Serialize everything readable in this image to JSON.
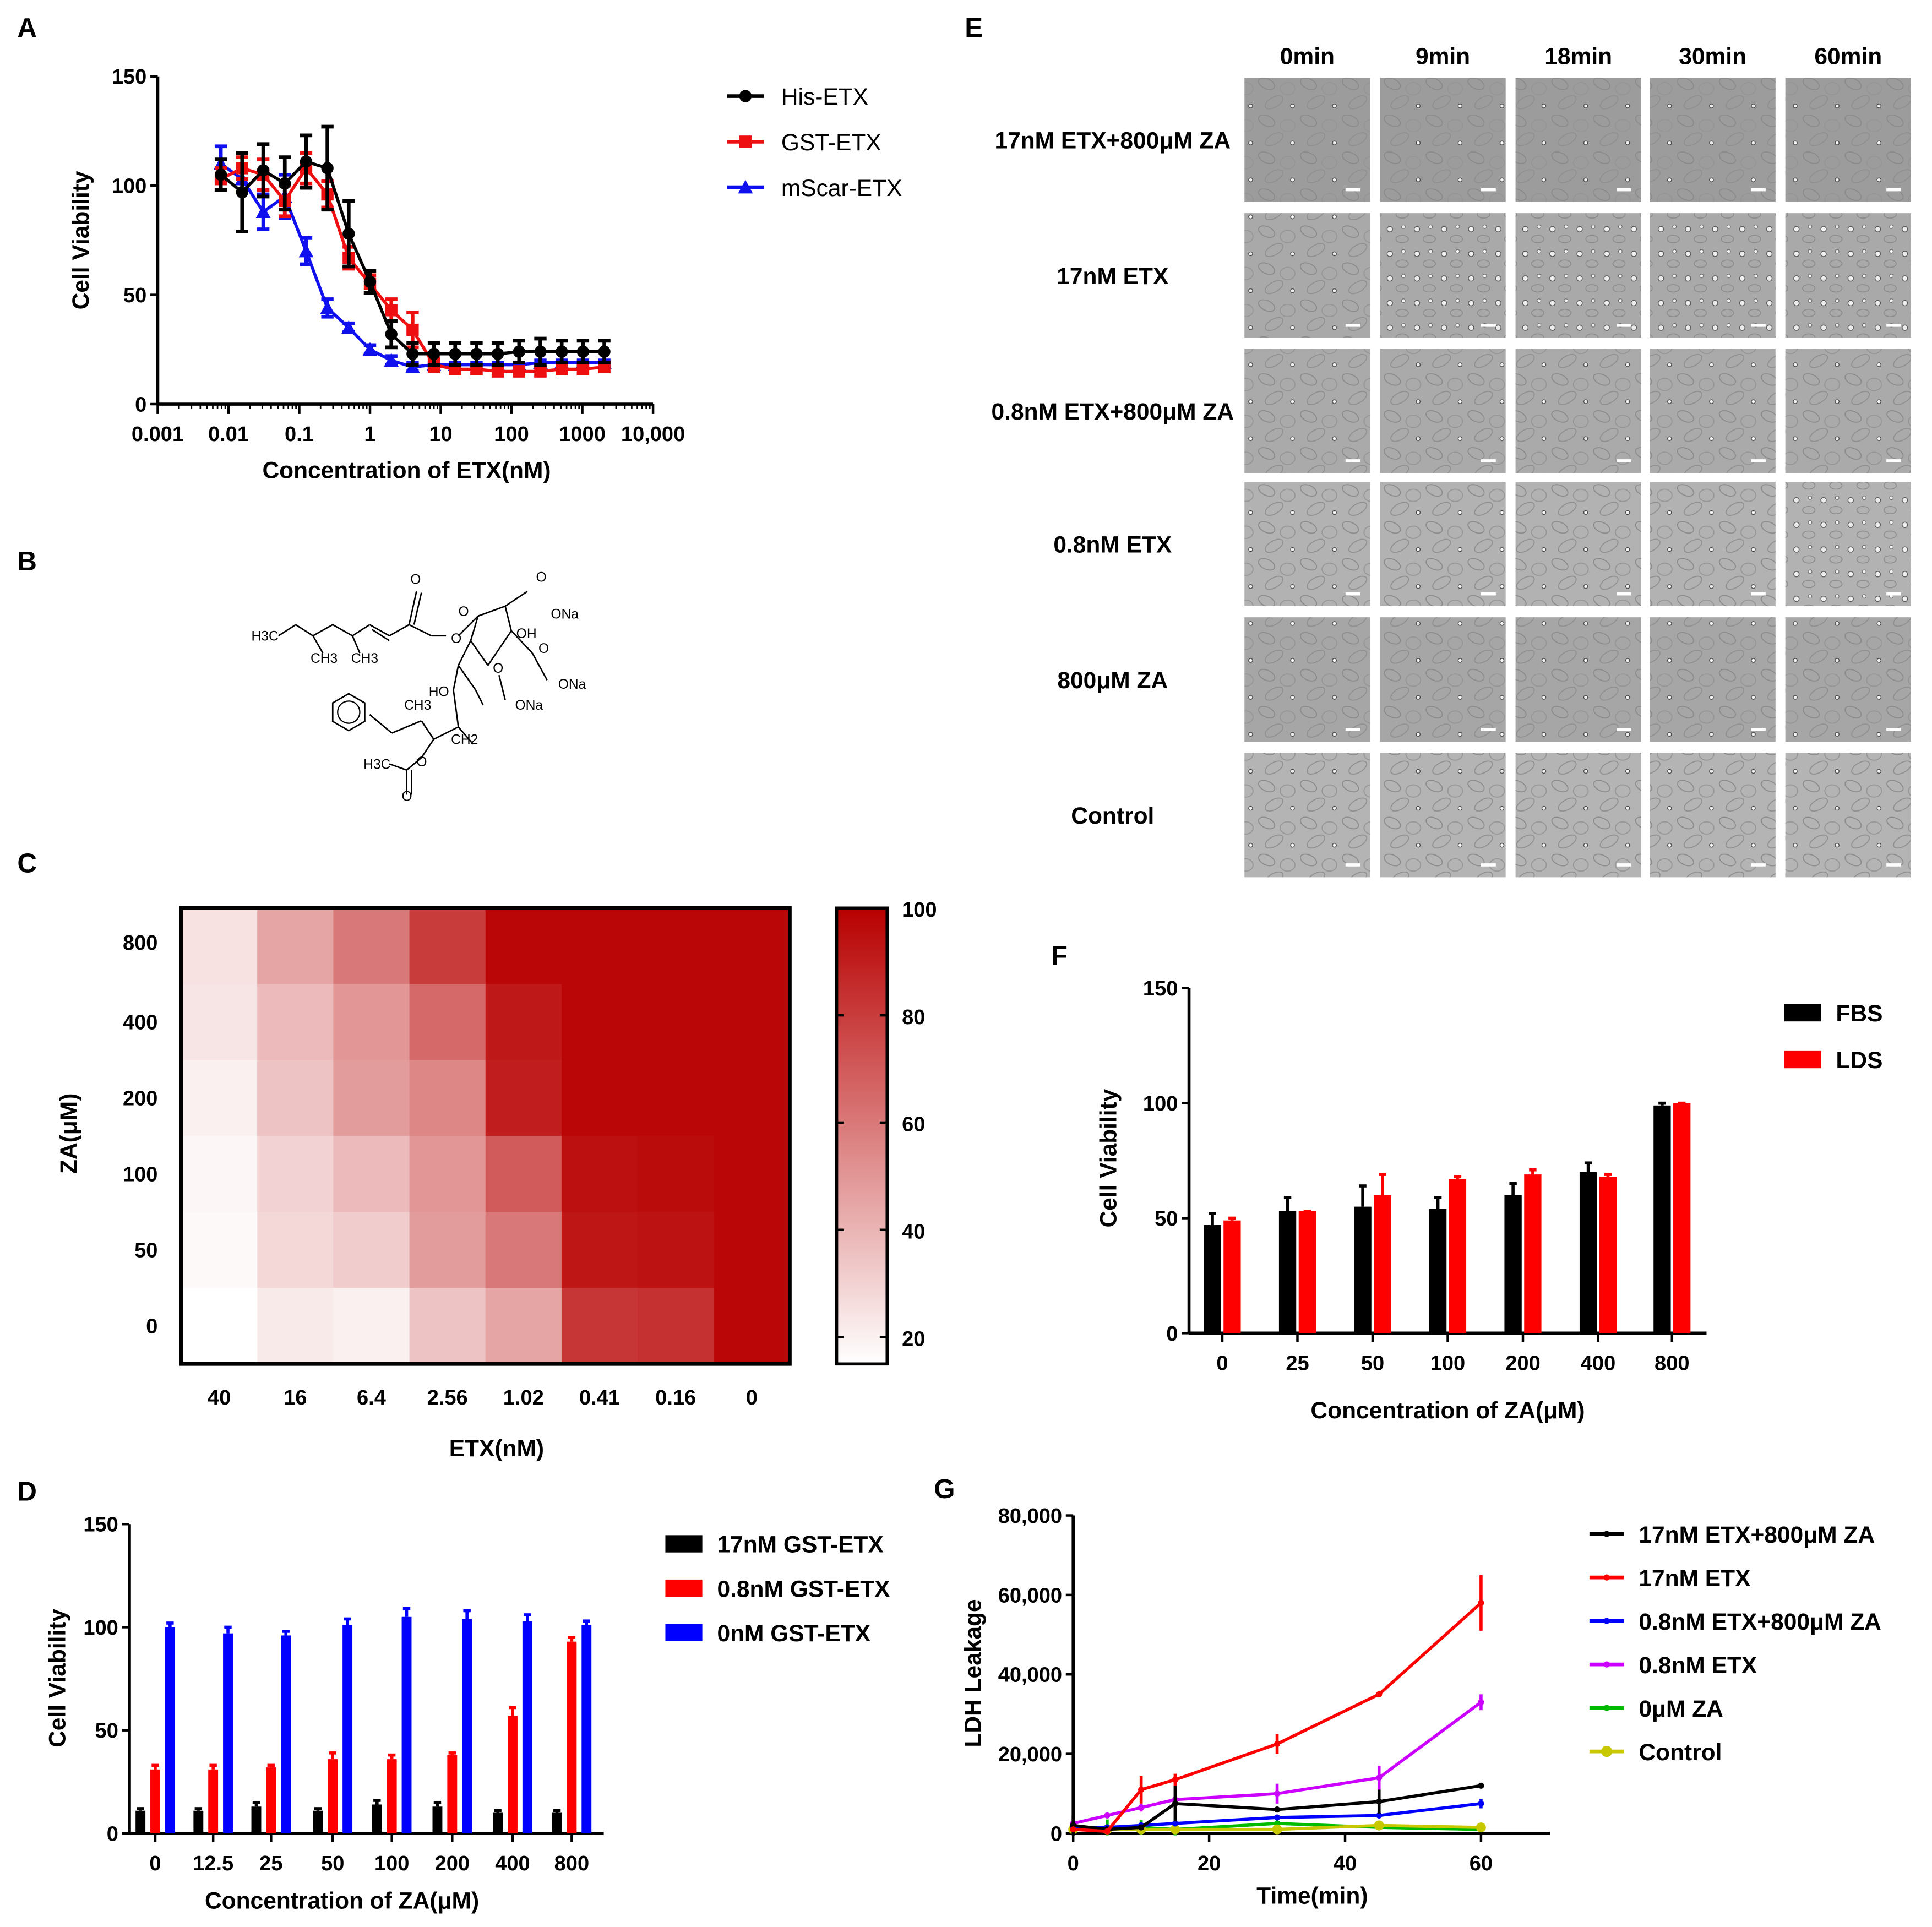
{
  "panel_labels": {
    "A": "A",
    "B": "B",
    "C": "C",
    "D": "D",
    "E": "E",
    "F": "F",
    "G": "G"
  },
  "panel_b": {
    "labels": [
      "H3C",
      "CH3",
      "CH3",
      "O",
      "O",
      "O",
      "ONa",
      "OH",
      "O",
      "O",
      "ONa",
      "HO",
      "CH3",
      "O",
      "ONa",
      "CH2",
      "H3C",
      "O",
      "O"
    ]
  },
  "panel_e": {
    "columns": [
      "0min",
      "9min",
      "18min",
      "30min",
      "60min"
    ],
    "rows": [
      "17nM ETX+800μM ZA",
      "17nM ETX",
      "0.8nM ETX+800μM ZA",
      "0.8nM ETX",
      "800μM ZA",
      "Control"
    ]
  },
  "chart_data": [
    {
      "panel": "A",
      "type": "line",
      "xscale": "log",
      "xlabel": "Concentration of ETX(nM)",
      "ylabel": "Cell Viability",
      "xlim": [
        0.001,
        10000
      ],
      "ylim": [
        0,
        150
      ],
      "xticks": [
        "0.001",
        "0.01",
        "0.1",
        "1",
        "10",
        "100",
        "1000",
        "10,000"
      ],
      "yticks": [
        "0",
        "50",
        "100",
        "150"
      ],
      "legend": "top-right",
      "x": [
        0.0078,
        0.0156,
        0.031,
        0.0625,
        0.125,
        0.25,
        0.5,
        1,
        2,
        4,
        8,
        16,
        32,
        64,
        128,
        256,
        512,
        1024,
        2048
      ],
      "series": [
        {
          "name": "mScar-ETX",
          "color": "#1010ee",
          "marker": "triangle",
          "values": [
            110,
            103,
            88,
            95,
            70,
            44,
            35,
            25,
            20,
            17,
            18,
            18,
            18,
            18,
            18,
            19,
            19,
            19,
            19
          ],
          "err": [
            8,
            6,
            8,
            10,
            6,
            4,
            2,
            2,
            2,
            2,
            1,
            1,
            1,
            1,
            1,
            1,
            1,
            1,
            1
          ]
        },
        {
          "name": "GST-ETX",
          "color": "#ee1010",
          "marker": "square",
          "values": [
            103,
            108,
            105,
            93,
            108,
            96,
            67,
            55,
            43,
            34,
            18,
            16,
            16,
            15,
            15,
            15,
            16,
            16,
            17
          ],
          "err": [
            5,
            5,
            7,
            7,
            7,
            6,
            5,
            4,
            5,
            8,
            3,
            2,
            2,
            2,
            2,
            2,
            2,
            2,
            2
          ]
        },
        {
          "name": "His-ETX",
          "color": "#000000",
          "marker": "circle",
          "values": [
            105,
            97,
            107,
            101,
            111,
            108,
            78,
            56,
            32,
            23,
            23,
            23,
            23,
            23,
            24,
            24,
            24,
            24,
            24
          ],
          "err": [
            7,
            18,
            12,
            12,
            12,
            19,
            15,
            5,
            6,
            5,
            5,
            5,
            5,
            5,
            5,
            6,
            5,
            5,
            5
          ]
        }
      ]
    },
    {
      "panel": "C",
      "type": "heatmap",
      "xlabel": "ETX(nM)",
      "ylabel": "ZA(μM)",
      "x": [
        "40",
        "16",
        "6.4",
        "2.56",
        "1.02",
        "0.41",
        "0.16",
        "0"
      ],
      "y": [
        "800",
        "400",
        "200",
        "100",
        "50",
        "0"
      ],
      "values": [
        [
          25,
          45,
          60,
          80,
          98,
          98,
          98,
          98
        ],
        [
          24,
          38,
          50,
          65,
          92,
          98,
          98,
          98
        ],
        [
          20,
          35,
          48,
          55,
          90,
          98,
          98,
          98
        ],
        [
          18,
          30,
          38,
          50,
          70,
          95,
          96,
          98
        ],
        [
          17,
          28,
          32,
          48,
          60,
          93,
          94,
          98
        ],
        [
          15,
          22,
          20,
          35,
          45,
          82,
          84,
          98
        ]
      ],
      "colorbar_ticks": [
        "20",
        "40",
        "60",
        "80",
        "100"
      ],
      "colorbar_range": [
        15,
        100
      ],
      "color_low": "#ffffff",
      "color_high": "#b80000"
    },
    {
      "panel": "D",
      "type": "bar",
      "xlabel": "Concentration of ZA(μM)",
      "ylabel": "Cell Viability",
      "ylim": [
        0,
        150
      ],
      "yticks": [
        "0",
        "50",
        "100",
        "150"
      ],
      "categories": [
        "0",
        "12.5",
        "25",
        "50",
        "100",
        "200",
        "400",
        "800"
      ],
      "legend": "right",
      "series": [
        {
          "name": "17nM GST-ETX",
          "color": "#000000",
          "values": [
            11,
            11,
            13,
            11,
            14,
            13,
            10,
            10
          ],
          "err": [
            1,
            1,
            2,
            1,
            2,
            2,
            1,
            1
          ]
        },
        {
          "name": "0.8nM GST-ETX",
          "color": "#ff0000",
          "values": [
            31,
            31,
            32,
            36,
            36,
            38,
            57,
            93
          ],
          "err": [
            2,
            2,
            1,
            3,
            2,
            1,
            4,
            2
          ]
        },
        {
          "name": "0nM GST-ETX",
          "color": "#0000ff",
          "values": [
            100,
            97,
            96,
            101,
            105,
            104,
            103,
            101
          ],
          "err": [
            2,
            3,
            2,
            3,
            4,
            4,
            3,
            2
          ]
        }
      ]
    },
    {
      "panel": "F",
      "type": "bar",
      "xlabel": "Concentration of ZA(μM)",
      "ylabel": "Cell Viability",
      "ylim": [
        0,
        150
      ],
      "yticks": [
        "0",
        "50",
        "100",
        "150"
      ],
      "categories": [
        "0",
        "25",
        "50",
        "100",
        "200",
        "400",
        "800"
      ],
      "legend": "top-right",
      "series": [
        {
          "name": "FBS",
          "color": "#000000",
          "values": [
            47,
            53,
            55,
            54,
            60,
            70,
            99
          ],
          "err": [
            5,
            6,
            9,
            5,
            5,
            4,
            1
          ]
        },
        {
          "name": "LDS",
          "color": "#ff0000",
          "values": [
            49,
            53,
            60,
            67,
            69,
            68,
            100
          ],
          "err": [
            1,
            0,
            9,
            1,
            2,
            1,
            0
          ]
        }
      ]
    },
    {
      "panel": "G",
      "type": "line",
      "xlabel": "Time(min)",
      "ylabel": "LDH Leakage",
      "xlim": [
        0,
        70
      ],
      "ylim": [
        0,
        80000
      ],
      "xticks": [
        "0",
        "20",
        "40",
        "60"
      ],
      "yticks": [
        "0",
        "20,000",
        "40,000",
        "60,000",
        "80,000"
      ],
      "legend": "right",
      "x": [
        0,
        5,
        10,
        15,
        30,
        45,
        60
      ],
      "series": [
        {
          "name": "17nM ETX+800μM ZA",
          "color": "#000000",
          "values": [
            2000,
            1000,
            1500,
            7500,
            6000,
            8000,
            12000
          ],
          "err": [
            2500,
            0,
            500,
            4500,
            0,
            3000,
            0
          ]
        },
        {
          "name": "17nM ETX",
          "color": "#ff0000",
          "values": [
            1000,
            500,
            11000,
            13500,
            22500,
            35000,
            58000
          ],
          "err": [
            0,
            0,
            3500,
            1500,
            2500,
            300,
            7000
          ]
        },
        {
          "name": "0.8nM ETX+800μM ZA",
          "color": "#0000ff",
          "values": [
            1500,
            1500,
            2000,
            2500,
            4000,
            4500,
            7500
          ],
          "err": [
            0,
            0,
            0,
            0,
            0,
            0,
            1200
          ]
        },
        {
          "name": "0.8nM ETX",
          "color": "#cc00ff",
          "values": [
            2500,
            4500,
            6500,
            8500,
            10000,
            14000,
            33000
          ],
          "err": [
            0,
            0,
            1000,
            0,
            2500,
            3000,
            2000
          ]
        },
        {
          "name": "0μM ZA",
          "color": "#00bb00",
          "values": [
            1000,
            1500,
            1500,
            1000,
            2500,
            1500,
            1000
          ],
          "err": [
            0,
            2000,
            1800,
            1500,
            0,
            0,
            0
          ]
        },
        {
          "name": "Control",
          "color": "#c8c800",
          "values": [
            1000,
            1000,
            1000,
            1000,
            1000,
            2000,
            1500
          ],
          "err": [
            0,
            0,
            0,
            0,
            0,
            0,
            0
          ]
        }
      ]
    }
  ]
}
